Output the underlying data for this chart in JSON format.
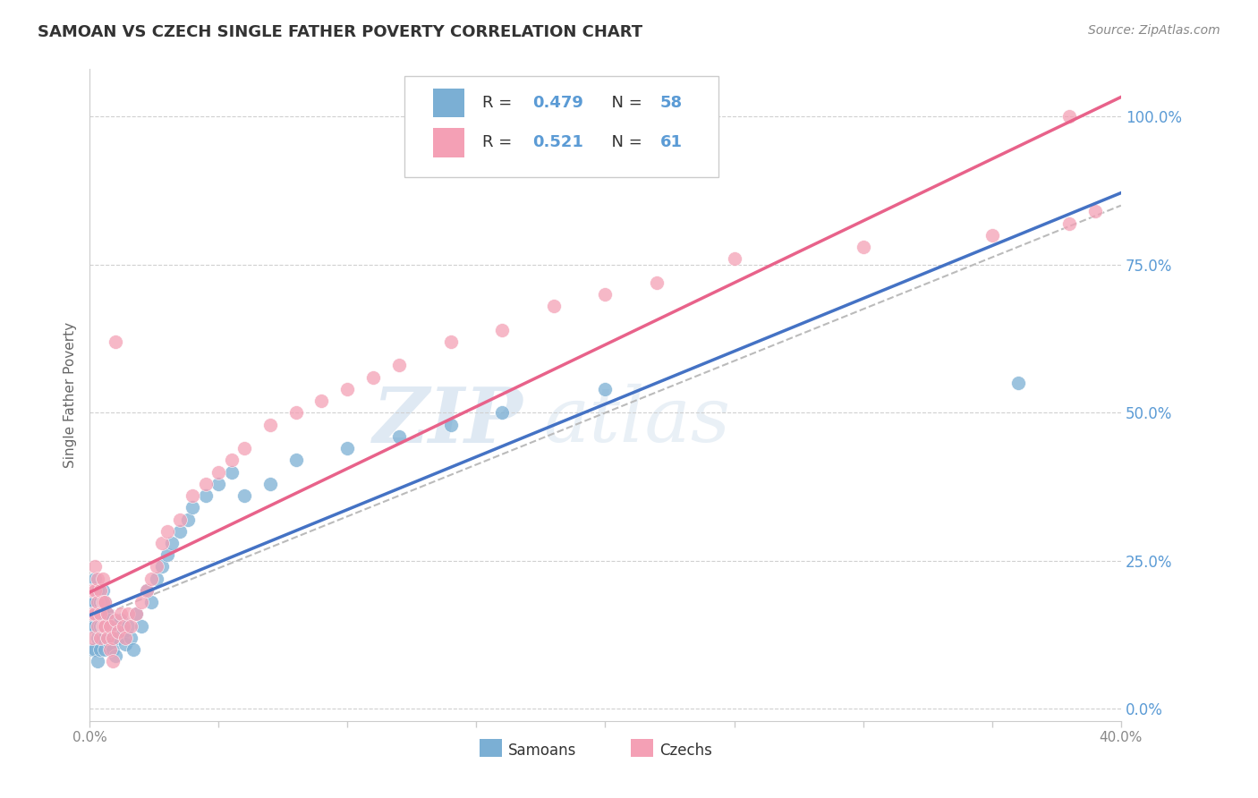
{
  "title": "SAMOAN VS CZECH SINGLE FATHER POVERTY CORRELATION CHART",
  "source": "Source: ZipAtlas.com",
  "ylabel": "Single Father Poverty",
  "ylabel_right_ticks": [
    "0.0%",
    "25.0%",
    "50.0%",
    "75.0%",
    "100.0%"
  ],
  "ylabel_right_vals": [
    0.0,
    0.25,
    0.5,
    0.75,
    1.0
  ],
  "R_samoans": 0.479,
  "N_samoans": 58,
  "R_czechs": 0.521,
  "N_czechs": 61,
  "xmin": 0.0,
  "xmax": 0.4,
  "ymin": -0.02,
  "ymax": 1.08,
  "color_samoans": "#7bafd4",
  "color_czechs": "#f4a0b5",
  "color_samoans_line": "#4472c4",
  "color_czechs_line": "#e8628a",
  "color_dashed": "#bbbbbb",
  "watermark_zip": "ZIP",
  "watermark_atlas": "atlas",
  "samoans_x": [
    0.001,
    0.001,
    0.001,
    0.002,
    0.002,
    0.002,
    0.002,
    0.003,
    0.003,
    0.003,
    0.003,
    0.004,
    0.004,
    0.004,
    0.005,
    0.005,
    0.005,
    0.006,
    0.006,
    0.006,
    0.007,
    0.007,
    0.008,
    0.008,
    0.009,
    0.009,
    0.01,
    0.01,
    0.011,
    0.012,
    0.013,
    0.014,
    0.015,
    0.016,
    0.017,
    0.018,
    0.02,
    0.022,
    0.024,
    0.026,
    0.028,
    0.03,
    0.032,
    0.035,
    0.038,
    0.04,
    0.045,
    0.05,
    0.055,
    0.06,
    0.07,
    0.08,
    0.1,
    0.12,
    0.14,
    0.16,
    0.2,
    0.36
  ],
  "samoans_y": [
    0.18,
    0.14,
    0.1,
    0.22,
    0.18,
    0.14,
    0.1,
    0.2,
    0.16,
    0.12,
    0.08,
    0.18,
    0.14,
    0.1,
    0.2,
    0.16,
    0.12,
    0.18,
    0.14,
    0.1,
    0.16,
    0.12,
    0.15,
    0.11,
    0.14,
    0.1,
    0.13,
    0.09,
    0.12,
    0.15,
    0.13,
    0.11,
    0.14,
    0.12,
    0.1,
    0.16,
    0.14,
    0.2,
    0.18,
    0.22,
    0.24,
    0.26,
    0.28,
    0.3,
    0.32,
    0.34,
    0.36,
    0.38,
    0.4,
    0.36,
    0.38,
    0.42,
    0.44,
    0.46,
    0.48,
    0.5,
    0.54,
    0.55
  ],
  "czechs_x": [
    0.001,
    0.001,
    0.001,
    0.002,
    0.002,
    0.002,
    0.003,
    0.003,
    0.003,
    0.004,
    0.004,
    0.004,
    0.005,
    0.005,
    0.005,
    0.006,
    0.006,
    0.007,
    0.007,
    0.008,
    0.008,
    0.009,
    0.009,
    0.01,
    0.011,
    0.012,
    0.013,
    0.014,
    0.015,
    0.016,
    0.018,
    0.02,
    0.022,
    0.024,
    0.026,
    0.028,
    0.03,
    0.035,
    0.04,
    0.045,
    0.05,
    0.055,
    0.06,
    0.07,
    0.08,
    0.09,
    0.1,
    0.11,
    0.12,
    0.14,
    0.16,
    0.18,
    0.2,
    0.22,
    0.25,
    0.3,
    0.35,
    0.38,
    0.39,
    0.01,
    0.38
  ],
  "czechs_y": [
    0.2,
    0.16,
    0.12,
    0.24,
    0.2,
    0.16,
    0.22,
    0.18,
    0.14,
    0.2,
    0.16,
    0.12,
    0.22,
    0.18,
    0.14,
    0.18,
    0.14,
    0.16,
    0.12,
    0.14,
    0.1,
    0.12,
    0.08,
    0.15,
    0.13,
    0.16,
    0.14,
    0.12,
    0.16,
    0.14,
    0.16,
    0.18,
    0.2,
    0.22,
    0.24,
    0.28,
    0.3,
    0.32,
    0.36,
    0.38,
    0.4,
    0.42,
    0.44,
    0.48,
    0.5,
    0.52,
    0.54,
    0.56,
    0.58,
    0.62,
    0.64,
    0.68,
    0.7,
    0.72,
    0.76,
    0.78,
    0.8,
    0.82,
    0.84,
    0.62,
    1.0
  ]
}
